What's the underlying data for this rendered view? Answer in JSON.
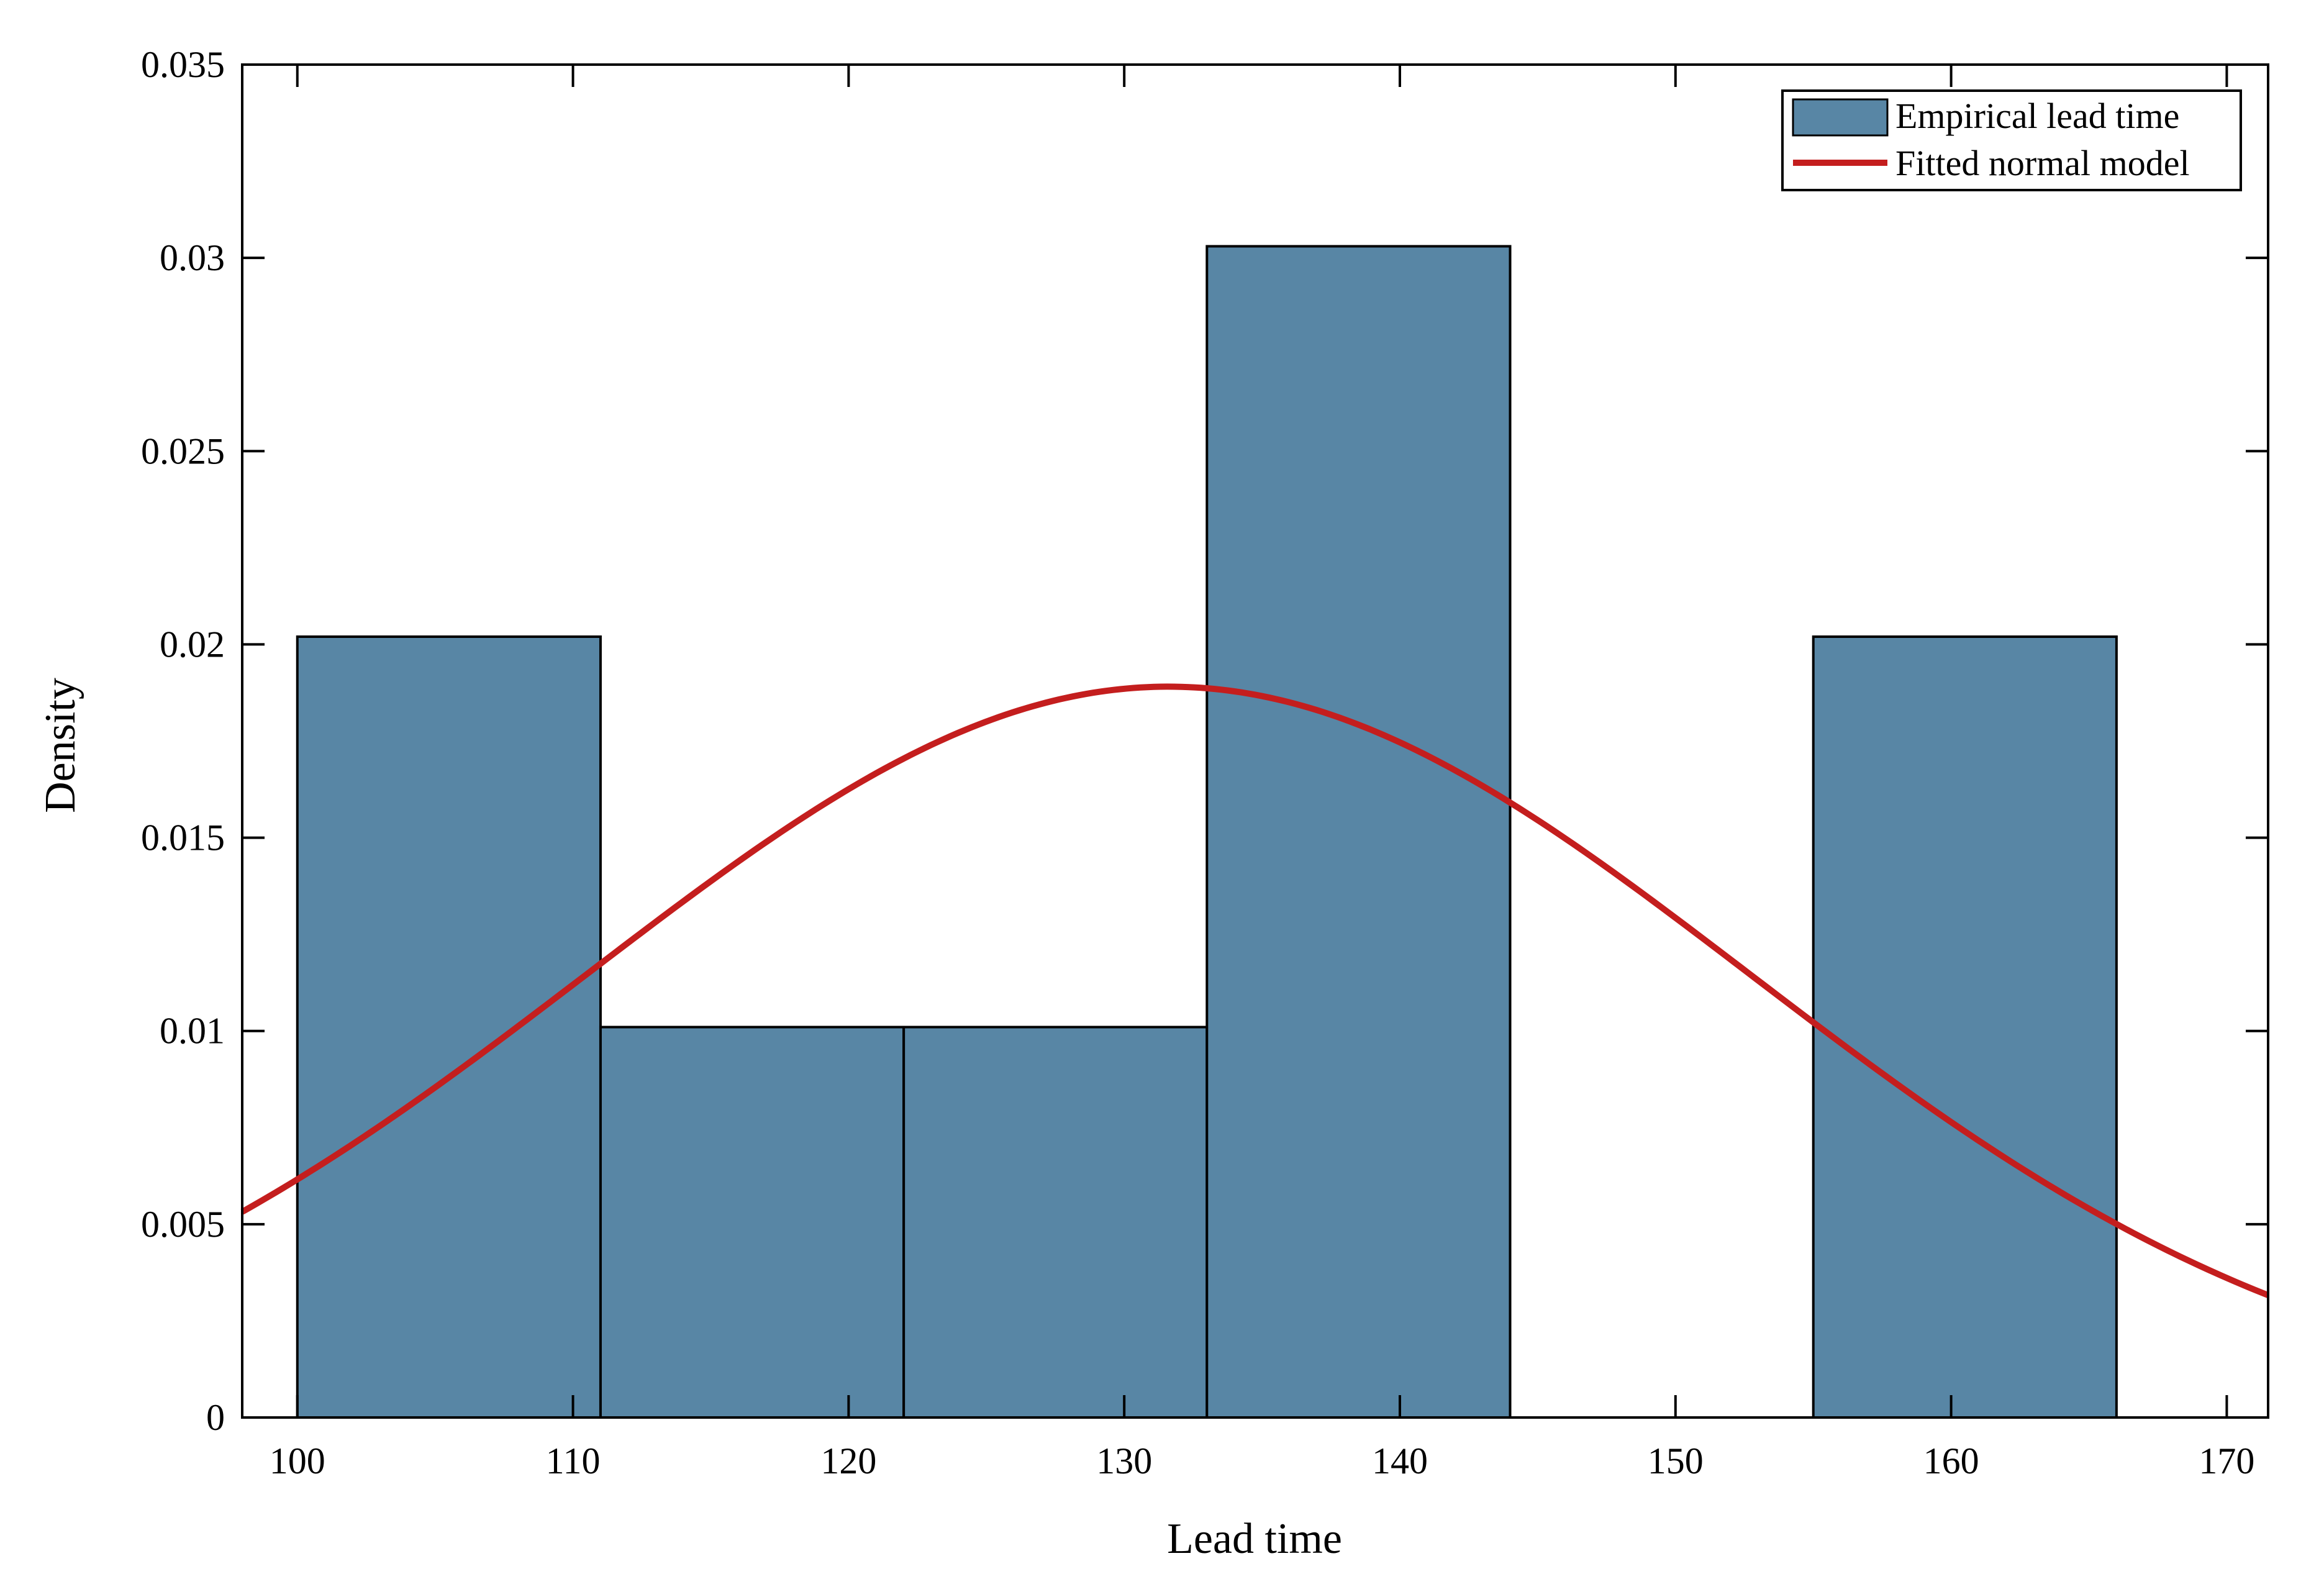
{
  "chart_data": {
    "type": "bar",
    "title": "",
    "xlabel": "Lead time",
    "ylabel": "Density",
    "xlim": [
      98,
      171.5
    ],
    "ylim": [
      0,
      0.035
    ],
    "xticks": [
      100,
      110,
      120,
      130,
      140,
      150,
      160,
      170
    ],
    "xtick_labels": [
      "100",
      "110",
      "120",
      "130",
      "140",
      "150",
      "160",
      "170"
    ],
    "yticks": [
      0,
      0.005,
      0.01,
      0.015,
      0.02,
      0.025,
      0.03,
      0.035
    ],
    "ytick_labels": [
      "0",
      "0.005",
      "0.01",
      "0.015",
      "0.02",
      "0.025",
      "0.03",
      "0.035"
    ],
    "grid": false,
    "legend_position": "top-right",
    "histogram": {
      "name": "Empirical lead time",
      "color": "#5886a5",
      "bins": [
        {
          "x0": 100,
          "x1": 111,
          "density": 0.0202
        },
        {
          "x0": 111,
          "x1": 122,
          "density": 0.0101
        },
        {
          "x0": 122,
          "x1": 133,
          "density": 0.0101
        },
        {
          "x0": 133,
          "x1": 144,
          "density": 0.0303
        },
        {
          "x0": 144,
          "x1": 155,
          "density": 0
        },
        {
          "x0": 155,
          "x1": 166,
          "density": 0.0202
        }
      ]
    },
    "curve": {
      "name": "Fitted normal model",
      "color": "#c41e1e",
      "distribution": "normal",
      "mean": 131.6,
      "std": 21.1
    }
  }
}
